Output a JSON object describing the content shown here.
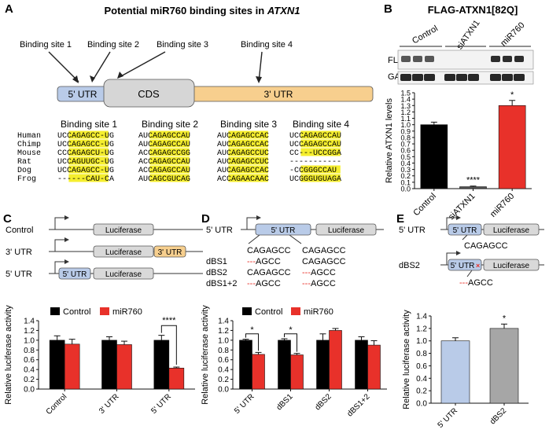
{
  "panelA": {
    "letter": "A",
    "title_prefix": "Potential miR760 binding sites in ",
    "title_gene": "ATXN1",
    "site_labels": [
      "Binding site 1",
      "Binding site 2",
      "Binding site 3",
      "Binding site 4"
    ],
    "regions": [
      "5' UTR",
      "CDS",
      "3' UTR"
    ],
    "species": [
      "Human",
      "Chimp",
      "Mouse",
      "Rat",
      "Dog",
      "Frog"
    ],
    "columns": [
      {
        "title": "Binding site 1",
        "seqs": [
          "UCCAGAGCC-UG",
          "UCCAGAGCC-UG",
          "CCCAGAGCU-UG",
          "UCCAGUUGC-UG",
          "UCCAGAGCC-UG",
          "------CAU-CA"
        ]
      },
      {
        "title": "Binding site 2",
        "seqs": [
          "AUCAGAGCCAU",
          "AUCAGAGCCAU",
          "ACCAGAGCCGG",
          "ACCAGAGCCAU",
          "ACCAGAGCCAU",
          "AUCAGCGUCAG"
        ]
      },
      {
        "title": "Binding site 3",
        "seqs": [
          "AUCAGAGCCAC",
          "AUCAGAGCCAC",
          "AUCAGAGCCUC",
          "AUCAGAGCCUC",
          "AUCAGAGCCAC",
          "ACCAGAACAAC"
        ]
      },
      {
        "title": "Binding site 4",
        "seqs": [
          "UCCAGAGCCAU",
          "UCCAGAGCCAU",
          "CC---UCCGGA",
          "-----------",
          "-CCGGGCCAU",
          "UCGGGUGUAGA"
        ]
      }
    ]
  },
  "panelB": {
    "letter": "B",
    "title": "FLAG-ATXN1[82Q]",
    "group_labels": [
      "Control",
      "siATXN1",
      "miR760"
    ],
    "blot_labels": [
      "FLAG",
      "GAPDH"
    ],
    "chart_data": {
      "type": "bar",
      "categories": [
        "Control",
        "siATXN1",
        "miR760"
      ],
      "values": [
        1.0,
        0.03,
        1.3
      ],
      "errors": [
        0.04,
        0.01,
        0.08
      ],
      "colors": [
        "#000000",
        "#555555",
        "#e8312a"
      ],
      "ylabel": "Relative ATXN1 levels",
      "ylim": [
        0,
        1.5
      ],
      "ticks": [
        "0.0",
        "0.1",
        "0.2",
        "0.3",
        "0.4",
        "0.5",
        "0.6",
        "0.7",
        "0.8",
        "0.9",
        "1.0",
        "1.1",
        "1.2",
        "1.3",
        "1.4",
        "1.5"
      ],
      "significance": [
        "",
        "****",
        "*"
      ]
    }
  },
  "panelC": {
    "letter": "C",
    "constructs": [
      "Control",
      "3' UTR",
      "5' UTR"
    ],
    "box_luc": "Luciferase",
    "box_3utr": "3' UTR",
    "box_5utr": "5' UTR",
    "chart_data": {
      "type": "bar",
      "categories": [
        "Control",
        "3' UTR",
        "5' UTR"
      ],
      "series": [
        {
          "name": "Control",
          "values": [
            1.0,
            1.0,
            1.0
          ],
          "errors": [
            0.09,
            0.07,
            0.1
          ],
          "color": "#000000"
        },
        {
          "name": "miR760",
          "values": [
            0.92,
            0.91,
            0.43
          ],
          "errors": [
            0.1,
            0.07,
            0.02
          ],
          "color": "#e8312a"
        }
      ],
      "ylabel": "Relative luciferase activity",
      "ylim": [
        0,
        1.4
      ],
      "ticks": [
        "0.0",
        "0.2",
        "0.4",
        "0.6",
        "0.8",
        "1.0",
        "1.2",
        "1.4"
      ],
      "significance": "****"
    }
  },
  "panelD": {
    "letter": "D",
    "label_5utr": "5' UTR",
    "box_5utr": "5' UTR",
    "box_luc": "Luciferase",
    "seq_rows": [
      {
        "label": "",
        "s1": "CAGAGCC",
        "s2": "CAGAGCC"
      },
      {
        "label": "dBS1",
        "s1": "AGCC",
        "s2": "CAGAGCC"
      },
      {
        "label": "dBS2",
        "s1": "CAGAGCC",
        "s2": "AGCC"
      },
      {
        "label": "dBS1+2",
        "s1": "AGCC",
        "s2": "AGCC"
      }
    ],
    "chart_data": {
      "type": "bar",
      "categories": [
        "5' UTR",
        "dBS1",
        "dBS2",
        "dBS1+2"
      ],
      "series": [
        {
          "name": "Control",
          "values": [
            1.0,
            1.0,
            1.0,
            1.0
          ],
          "errors": [
            0.02,
            0.03,
            0.13,
            0.07
          ],
          "color": "#000000"
        },
        {
          "name": "miR760",
          "values": [
            0.71,
            0.7,
            1.2,
            0.9
          ],
          "errors": [
            0.04,
            0.03,
            0.04,
            0.09
          ],
          "color": "#e8312a"
        }
      ],
      "ylabel": "Relative luciferase activity",
      "ylim": [
        0,
        1.4
      ],
      "ticks": [
        "0.0",
        "0.2",
        "0.4",
        "0.6",
        "0.8",
        "1.0",
        "1.2",
        "1.4"
      ],
      "significance": [
        "*",
        "*"
      ]
    }
  },
  "panelE": {
    "letter": "E",
    "label_5utr": "5' UTR",
    "label_dbs2": "dBS2",
    "box_5utr": "5' UTR",
    "box_luc": "Luciferase",
    "seq_top": "CAGAGCC",
    "seq_bottom": "AGCC",
    "chart_data": {
      "type": "bar",
      "categories": [
        "5' UTR",
        "dBS2"
      ],
      "values": [
        1.0,
        1.2
      ],
      "errors": [
        0.05,
        0.07
      ],
      "colors": [
        "#b9cbe8",
        "#a6a6a6"
      ],
      "ylabel": "Relative luciferase activity",
      "ylim": [
        0,
        1.4
      ],
      "ticks": [
        "0.0",
        "0.2",
        "0.4",
        "0.6",
        "0.8",
        "1.0",
        "1.2",
        "1.4"
      ],
      "significance": [
        "",
        "*"
      ]
    }
  }
}
